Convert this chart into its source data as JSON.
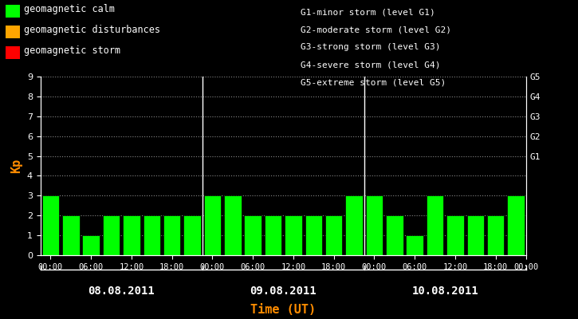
{
  "background_color": "#000000",
  "plot_bg_color": "#000000",
  "bar_color": "#00ff00",
  "text_color": "#ffffff",
  "ylabel_color": "#ff8c00",
  "xlabel_color": "#ff8c00",
  "bar_edge_color": "#000000",
  "days": [
    "08.08.2011",
    "09.08.2011",
    "10.08.2011"
  ],
  "kp_values": [
    3,
    2,
    1,
    2,
    2,
    2,
    2,
    2,
    3,
    3,
    2,
    2,
    2,
    2,
    2,
    3,
    3,
    2,
    1,
    3,
    2,
    2,
    2,
    3
  ],
  "ylim": [
    0,
    9
  ],
  "yticks": [
    0,
    1,
    2,
    3,
    4,
    5,
    6,
    7,
    8,
    9
  ],
  "ylabel": "Kp",
  "xlabel": "Time (UT)",
  "g_labels": [
    "G5",
    "G4",
    "G3",
    "G2",
    "G1"
  ],
  "g_levels": [
    9,
    8,
    7,
    6,
    5
  ],
  "legend_calm": "geomagnetic calm",
  "legend_disturbances": "geomagnetic disturbances",
  "legend_storm": "geomagnetic storm",
  "legend_calm_color": "#00ff00",
  "legend_disturbances_color": "#ffa500",
  "legend_storm_color": "#ff0000",
  "storm_info": [
    "G1-minor storm (level G1)",
    "G2-moderate storm (level G2)",
    "G3-strong storm (level G3)",
    "G4-severe storm (level G4)",
    "G5-extreme storm (level G5)"
  ],
  "xtick_labels_per_day": [
    "00:00",
    "06:00",
    "12:00",
    "18:00"
  ],
  "font_name": "monospace"
}
